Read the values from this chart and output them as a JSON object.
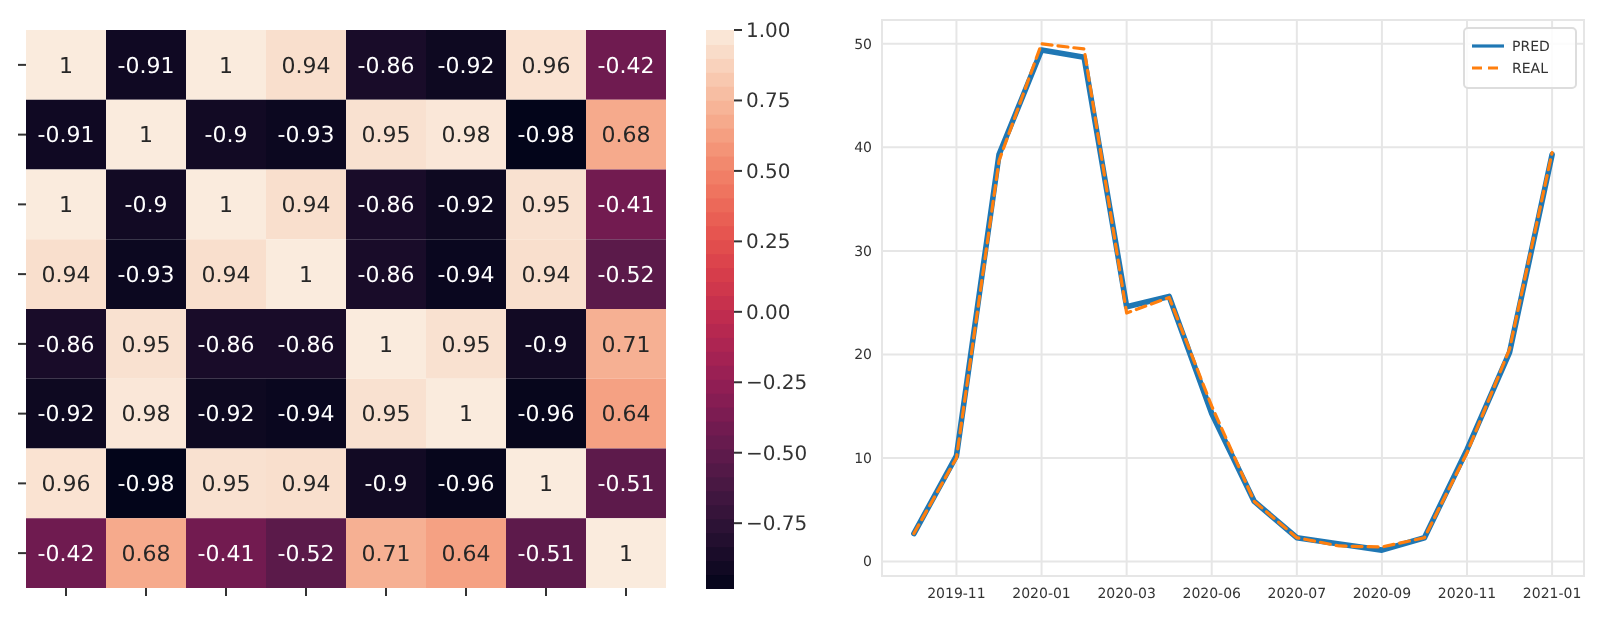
{
  "chart_data": [
    {
      "type": "heatmap",
      "categories": [
        null,
        null,
        null,
        null,
        null,
        null,
        null,
        null
      ],
      "y_categories": [
        null,
        null,
        null,
        null,
        null,
        null,
        null,
        null
      ],
      "cells": [
        [
          1,
          -0.91,
          1,
          0.94,
          -0.86,
          -0.92,
          0.96,
          -0.42
        ],
        [
          -0.91,
          1,
          -0.9,
          -0.93,
          0.95,
          0.98,
          -0.98,
          0.68
        ],
        [
          1,
          -0.9,
          1,
          0.94,
          -0.86,
          -0.92,
          0.95,
          -0.41
        ],
        [
          0.94,
          -0.93,
          0.94,
          1,
          -0.86,
          -0.94,
          0.94,
          -0.52
        ],
        [
          -0.86,
          0.95,
          -0.86,
          -0.86,
          1,
          0.95,
          -0.9,
          0.71
        ],
        [
          -0.92,
          0.98,
          -0.92,
          -0.94,
          0.95,
          1,
          -0.96,
          0.64
        ],
        [
          0.96,
          -0.98,
          0.95,
          0.94,
          -0.9,
          -0.96,
          1,
          -0.51
        ],
        [
          -0.42,
          0.68,
          -0.41,
          -0.52,
          0.71,
          0.64,
          -0.51,
          1
        ]
      ],
      "data_labels": true,
      "clim": [
        -0.98,
        1
      ],
      "cticks": [
        {
          "value": 1,
          "label": "1.00"
        },
        {
          "value": 0.75,
          "label": "0.75"
        },
        {
          "value": 0.5,
          "label": "0.50"
        },
        {
          "value": 0.25,
          "label": "0.25"
        },
        {
          "value": 0,
          "label": "0.00"
        },
        {
          "value": -0.25,
          "label": "−0.25"
        },
        {
          "value": -0.5,
          "label": "−0.50"
        },
        {
          "value": -0.75,
          "label": "−0.75"
        }
      ]
    },
    {
      "type": "line",
      "categories": [
        null,
        "2019-11",
        null,
        "2020-01",
        null,
        "2020-03",
        null,
        "2020-06",
        null,
        "2020-07",
        null,
        "2020-09",
        null,
        "2020-11",
        null,
        "2021-01"
      ],
      "series": [
        {
          "name": "PRED",
          "color": "#1f77b4",
          "line_style": "solid",
          "values": [
            2.7,
            10.2,
            39.3,
            49.4,
            48.7,
            24.6,
            25.6,
            14.3,
            5.8,
            2.3,
            1.7,
            1.1,
            2.3,
            10.8,
            20.2,
            39.3
          ]
        },
        {
          "name": "REAL",
          "color": "#ff7f0e",
          "line_style": "dashed",
          "values": [
            2.7,
            10,
            38.7,
            50,
            49.5,
            24,
            25.5,
            15,
            5.8,
            2.3,
            1.5,
            1.4,
            2.3,
            10.5,
            20.5,
            39.5
          ]
        }
      ],
      "ylim": [
        -1.4,
        52.3
      ],
      "yticks": [
        0,
        10,
        20,
        30,
        40,
        50
      ],
      "grid": true,
      "legend": "top right"
    }
  ]
}
